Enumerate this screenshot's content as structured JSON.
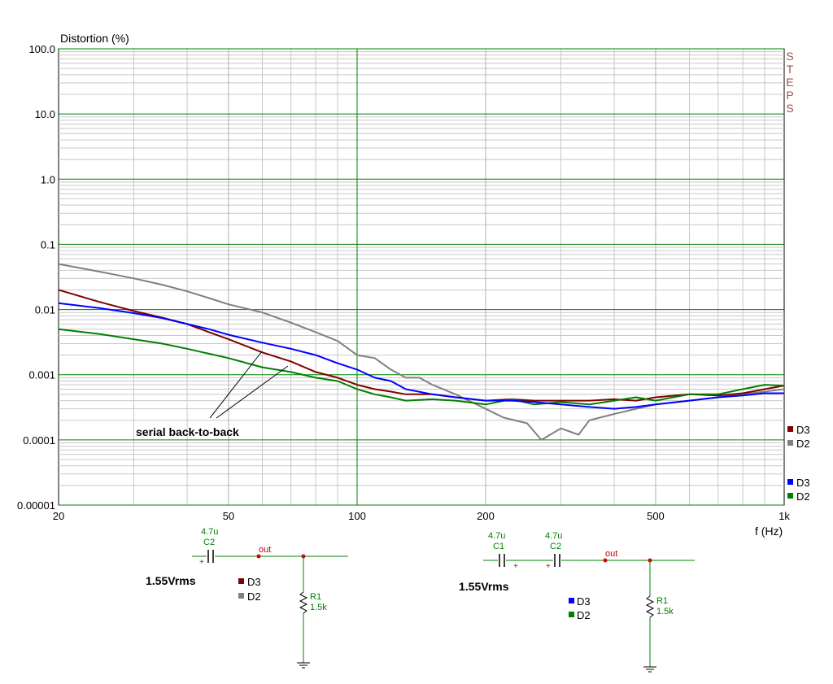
{
  "chart_data": {
    "type": "line",
    "ylabel": "Distortion (%)",
    "xlabel": "f (Hz)",
    "x_scale": "log",
    "y_scale": "log",
    "xlim": [
      20,
      1000
    ],
    "ylim": [
      1e-05,
      100
    ],
    "x_major_ticks": [
      20,
      50,
      100,
      200,
      500,
      1000
    ],
    "x_tick_labels": [
      "20",
      "50",
      "100",
      "200",
      "500",
      "1k"
    ],
    "y_major_ticks": [
      1e-05,
      0.0001,
      0.001,
      0.01,
      0.1,
      1,
      10,
      100
    ],
    "y_tick_labels": [
      "0.00001",
      "0.0001",
      "0.001",
      "0.01",
      "0.1",
      "1.0",
      "10.0",
      "100.0"
    ],
    "grid": true,
    "side_text": [
      "S",
      "T",
      "E",
      "P",
      "S"
    ],
    "annotation": "serial back-to-back",
    "legend_placement": "right",
    "legend_groups": [
      {
        "entries": [
          {
            "label": "D3",
            "color": "#800000"
          },
          {
            "label": "D2",
            "color": "#808080"
          }
        ]
      },
      {
        "entries": [
          {
            "label": "D3",
            "color": "#0000ff"
          },
          {
            "label": "D2",
            "color": "#008000"
          }
        ]
      }
    ],
    "series": [
      {
        "name": "D3",
        "color": "#800000",
        "x": [
          20,
          25,
          30,
          35,
          40,
          45,
          50,
          60,
          70,
          80,
          90,
          100,
          110,
          120,
          130,
          150,
          170,
          200,
          230,
          260,
          300,
          350,
          400,
          450,
          500,
          600,
          700,
          800,
          900,
          1000
        ],
        "y": [
          0.02,
          0.013,
          0.0095,
          0.0075,
          0.006,
          0.0045,
          0.0035,
          0.0022,
          0.0016,
          0.0011,
          0.0009,
          0.0007,
          0.0006,
          0.00055,
          0.0005,
          0.0005,
          0.00045,
          0.0004,
          0.00042,
          0.0004,
          0.0004,
          0.0004,
          0.00042,
          0.0004,
          0.00045,
          0.0005,
          0.00048,
          0.00052,
          0.0006,
          0.00068
        ]
      },
      {
        "name": "D2",
        "color": "#808080",
        "x": [
          20,
          25,
          30,
          35,
          40,
          45,
          50,
          60,
          70,
          80,
          90,
          100,
          110,
          120,
          130,
          140,
          150,
          170,
          200,
          220,
          250,
          270,
          300,
          330,
          350,
          400,
          450,
          500,
          600,
          700,
          800,
          900,
          1000
        ],
        "y": [
          0.05,
          0.038,
          0.03,
          0.024,
          0.019,
          0.015,
          0.012,
          0.009,
          0.0063,
          0.0045,
          0.0033,
          0.002,
          0.0018,
          0.0012,
          0.0009,
          0.0009,
          0.0007,
          0.0005,
          0.0003,
          0.00022,
          0.00018,
          0.0001,
          0.00015,
          0.00012,
          0.0002,
          0.00025,
          0.0003,
          0.00035,
          0.0004,
          0.00045,
          0.0005,
          0.00055,
          0.0006
        ]
      },
      {
        "name": "D3",
        "color": "#0000ff",
        "x": [
          20,
          25,
          30,
          35,
          40,
          45,
          50,
          60,
          70,
          80,
          90,
          100,
          110,
          120,
          130,
          150,
          170,
          200,
          230,
          260,
          300,
          350,
          400,
          450,
          500,
          600,
          700,
          800,
          900,
          1000
        ],
        "y": [
          0.0125,
          0.0105,
          0.0088,
          0.0074,
          0.006,
          0.005,
          0.0041,
          0.0031,
          0.0025,
          0.002,
          0.0015,
          0.0012,
          0.0009,
          0.0008,
          0.0006,
          0.0005,
          0.00045,
          0.0004,
          0.0004,
          0.00038,
          0.00035,
          0.00032,
          0.0003,
          0.00032,
          0.00035,
          0.0004,
          0.00045,
          0.00048,
          0.00052,
          0.00052
        ]
      },
      {
        "name": "D2",
        "color": "#008000",
        "x": [
          20,
          25,
          30,
          35,
          40,
          45,
          50,
          60,
          70,
          80,
          90,
          100,
          110,
          120,
          130,
          150,
          170,
          200,
          230,
          260,
          300,
          350,
          400,
          450,
          500,
          600,
          700,
          800,
          900,
          1000
        ],
        "y": [
          0.005,
          0.0042,
          0.0035,
          0.003,
          0.0025,
          0.0021,
          0.0018,
          0.0013,
          0.0011,
          0.0009,
          0.0008,
          0.0006,
          0.0005,
          0.00045,
          0.0004,
          0.00042,
          0.0004,
          0.00035,
          0.00042,
          0.00035,
          0.00038,
          0.00035,
          0.0004,
          0.00045,
          0.0004,
          0.0005,
          0.0005,
          0.0006,
          0.0007,
          0.00068
        ]
      }
    ]
  },
  "circuits": [
    {
      "source_label": "1.55Vrms",
      "capacitors": [
        {
          "value": "4.7u",
          "name": "C2"
        }
      ],
      "node_label": "out",
      "resistor": {
        "name": "R1",
        "value": "1.5k"
      },
      "legend": [
        {
          "label": "D3",
          "color": "#800000"
        },
        {
          "label": "D2",
          "color": "#808080"
        }
      ]
    },
    {
      "source_label": "1.55Vrms",
      "capacitors": [
        {
          "value": "4.7u",
          "name": "C1"
        },
        {
          "value": "4.7u",
          "name": "C2"
        }
      ],
      "node_label": "out",
      "resistor": {
        "name": "R1",
        "value": "1.5k"
      },
      "legend": [
        {
          "label": "D3",
          "color": "#0000ff"
        },
        {
          "label": "D2",
          "color": "#008000"
        }
      ]
    }
  ]
}
